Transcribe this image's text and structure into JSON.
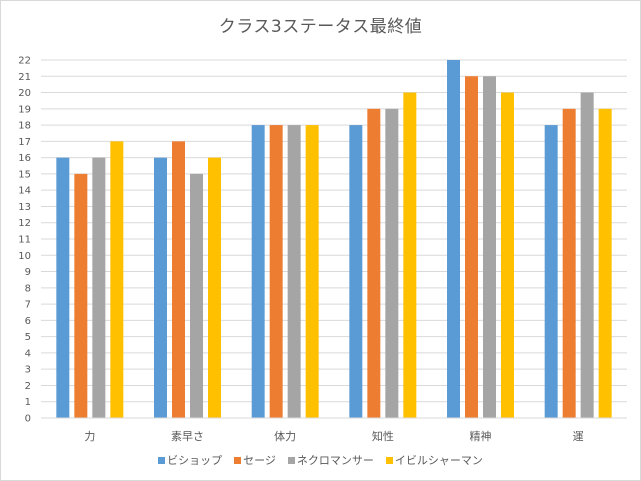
{
  "chart_data": {
    "type": "bar",
    "title": "クラス3ステータス最終値",
    "xlabel": "",
    "ylabel": "",
    "categories": [
      "力",
      "素早さ",
      "体力",
      "知性",
      "精神",
      "運"
    ],
    "ylim": [
      0,
      22
    ],
    "yticks": [
      "0",
      "1",
      "2",
      "3",
      "4",
      "5",
      "6",
      "7",
      "8",
      "9",
      "10",
      "11",
      "12",
      "13",
      "14",
      "15",
      "16",
      "17",
      "18",
      "19",
      "20",
      "21",
      "22"
    ],
    "grid": true,
    "legend_position": "bottom",
    "series": [
      {
        "name": "ビショップ",
        "color": "#5b9bd5",
        "values": [
          16,
          16,
          18,
          18,
          22,
          18
        ]
      },
      {
        "name": "セージ",
        "color": "#ed7d31",
        "values": [
          15,
          17,
          18,
          19,
          21,
          19
        ]
      },
      {
        "name": "ネクロマンサー",
        "color": "#a5a5a5",
        "values": [
          16,
          15,
          18,
          19,
          21,
          20
        ]
      },
      {
        "name": "イビルシャーマン",
        "color": "#ffc000",
        "values": [
          17,
          16,
          18,
          20,
          20,
          19
        ]
      }
    ]
  }
}
